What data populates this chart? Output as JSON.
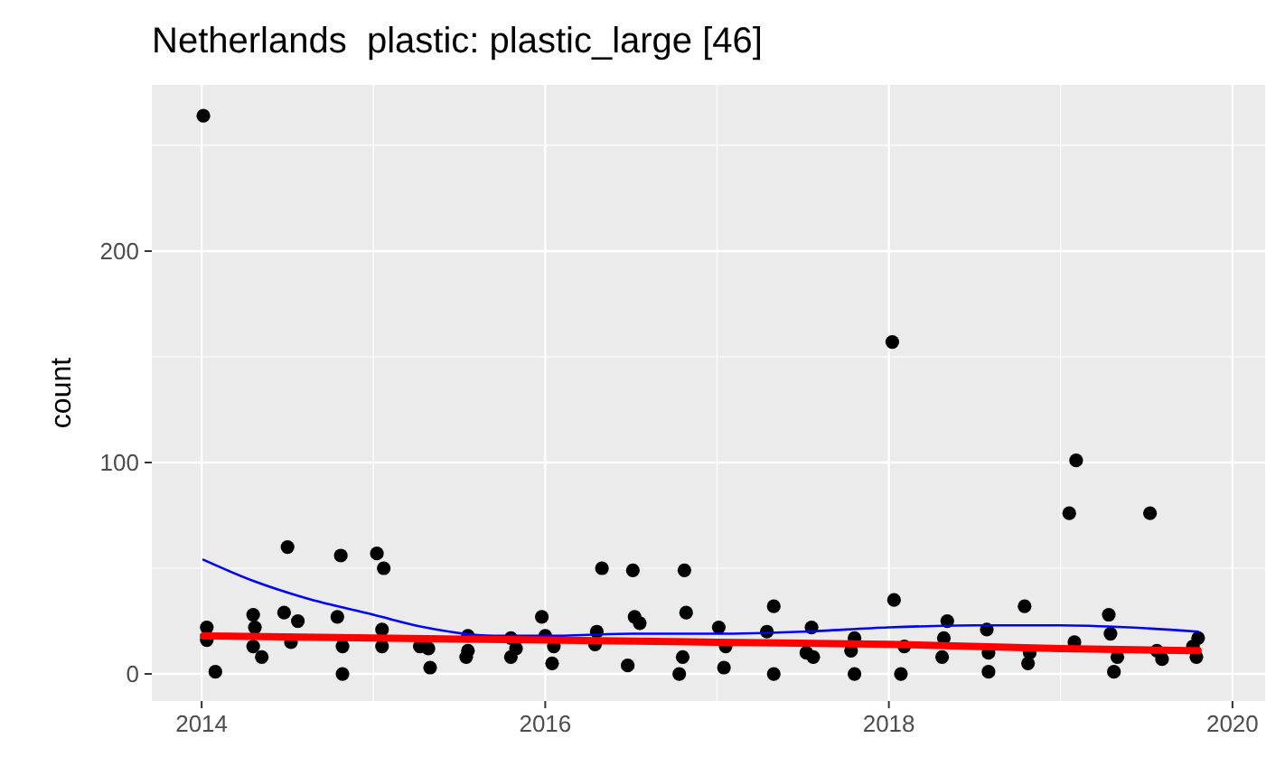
{
  "chart_data": {
    "type": "scatter",
    "title": "Netherlands  plastic: plastic_large [46]",
    "ylabel": "count",
    "xlim": [
      2013.71,
      2020.19
    ],
    "xticks": [
      2014,
      2016,
      2018,
      2020
    ],
    "ylim": [
      -12.8,
      278.6
    ],
    "yticks": [
      0,
      100,
      200
    ],
    "grid": true,
    "marker": "none",
    "series": [
      {
        "color": "#000000",
        "marker": "circle",
        "x": [
          2014.01,
          2014.03,
          2014.03,
          2014.08,
          2014.3,
          2014.31,
          2014.3,
          2014.35,
          2014.5,
          2014.48,
          2014.56,
          2014.52,
          2014.81,
          2014.79,
          2014.82,
          2014.82,
          2015.02,
          2015.06,
          2015.05,
          2015.05,
          2015.27,
          2015.32,
          2015.33,
          2015.55,
          2015.55,
          2015.54,
          2015.8,
          2015.83,
          2015.8,
          2015.98,
          2016.0,
          2016.05,
          2016.04,
          2016.33,
          2016.3,
          2016.29,
          2016.51,
          2016.52,
          2016.55,
          2016.48,
          2016.81,
          2016.82,
          2016.8,
          2016.78,
          2017.01,
          2017.05,
          2017.04,
          2017.33,
          2017.29,
          2017.33,
          2017.55,
          2017.52,
          2017.56,
          2017.8,
          2017.78,
          2017.8,
          2018.02,
          2018.03,
          2018.09,
          2018.07,
          2018.34,
          2018.32,
          2018.31,
          2018.57,
          2018.58,
          2018.58,
          2018.79,
          2018.82,
          2018.81,
          2019.09,
          2019.05,
          2019.08,
          2019.28,
          2019.29,
          2019.33,
          2019.31,
          2019.52,
          2019.56,
          2019.59,
          2019.8,
          2019.77,
          2019.79
        ],
        "values": [
          264,
          22,
          16,
          1,
          28,
          22,
          13,
          8,
          60,
          29,
          25,
          15,
          56,
          27,
          13,
          0,
          57,
          50,
          21,
          13,
          13,
          12,
          3,
          18,
          11,
          8,
          17,
          12,
          8,
          27,
          18,
          13,
          5,
          50,
          20,
          14,
          49,
          27,
          24,
          4,
          49,
          29,
          8,
          0,
          22,
          13,
          3,
          32,
          20,
          0,
          22,
          10,
          8,
          17,
          11,
          0,
          157,
          35,
          13,
          0,
          25,
          17,
          8,
          21,
          10,
          1,
          32,
          10,
          5,
          101,
          76,
          15,
          28,
          19,
          8,
          1,
          76,
          11,
          7,
          17,
          13,
          8
        ]
      },
      {
        "type": "line",
        "color": "#0000ff",
        "x": [
          2014.01,
          2014.3,
          2014.6,
          2015.0,
          2015.3,
          2015.7,
          2016.0,
          2016.5,
          2017.0,
          2017.5,
          2018.0,
          2018.5,
          2019.0,
          2019.4,
          2019.8
        ],
        "values": [
          54,
          44,
          36,
          28,
          22,
          18,
          18,
          19,
          19,
          20,
          22,
          23,
          23,
          22,
          20
        ]
      },
      {
        "type": "line",
        "color": "#ff0000",
        "x": [
          2014.01,
          2015,
          2016,
          2017,
          2018,
          2019,
          2019.8
        ],
        "values": [
          18,
          17,
          16,
          15,
          14,
          12,
          11
        ]
      }
    ]
  }
}
